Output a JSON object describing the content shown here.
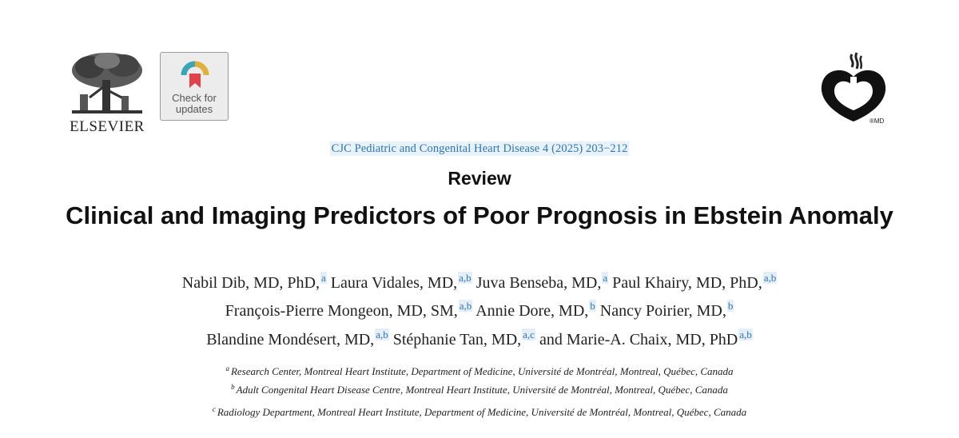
{
  "header": {
    "publisher_name": "ELSEVIER",
    "check_updates": {
      "line1": "Check for",
      "line2": "updates"
    },
    "cjc_logo_mark": "®MD"
  },
  "journal_citation": "CJC Pediatric and Congenital Heart Disease 4 (2025) 203−212",
  "article_type": "Review",
  "title": "Clinical and Imaging Predictors of Poor Prognosis in Ebstein Anomaly",
  "authors": [
    {
      "name": "Nabil Dib, MD, PhD,",
      "aff": "a"
    },
    {
      "name": "Laura Vidales, MD,",
      "aff": "a,b"
    },
    {
      "name": "Juva Benseba, MD,",
      "aff": "a"
    },
    {
      "name": "Paul Khairy, MD, PhD,",
      "aff": "a,b"
    },
    {
      "name": "François-Pierre Mongeon, MD, SM,",
      "aff": "a,b"
    },
    {
      "name": "Annie Dore, MD,",
      "aff": "b"
    },
    {
      "name": "Nancy Poirier, MD,",
      "aff": "b"
    },
    {
      "name": "Blandine Mondésert, MD,",
      "aff": "a,b"
    },
    {
      "name": "Stéphanie Tan, MD,",
      "aff": "a,c"
    },
    {
      "name": "and Marie-A. Chaix, MD, PhD",
      "aff": "a,b"
    }
  ],
  "affiliations": [
    {
      "mark": "a",
      "text": "Research Center, Montreal Heart Institute, Department of Medicine, Université de Montréal, Montreal, Québec, Canada"
    },
    {
      "mark": "b",
      "text": "Adult Congenital Heart Disease Centre, Montreal Heart Institute, Université de Montréal, Montreal, Québec, Canada"
    },
    {
      "mark": "c",
      "text": "Radiology Department, Montreal Heart Institute, Department of Medicine, Université de Montréal, Montreal, Québec, Canada"
    }
  ],
  "colors": {
    "link": "#2e75b6",
    "link_bg": "#e3eef9",
    "text": "#111111"
  }
}
